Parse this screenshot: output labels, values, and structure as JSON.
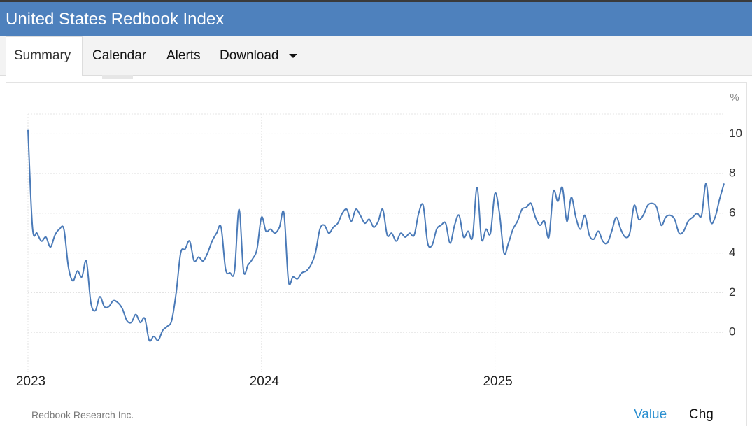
{
  "header": {
    "title": "United States Redbook Index"
  },
  "tabs": [
    "Summary",
    "Calendar",
    "Alerts",
    "Download"
  ],
  "chart_data": {
    "type": "line",
    "y_unit": "%",
    "color": "#4a7ab8",
    "categories": [
      "2023",
      null,
      null,
      null,
      null,
      null,
      null,
      null,
      null,
      null,
      null,
      null,
      null,
      null,
      null,
      null,
      null,
      null,
      null,
      null,
      null,
      null,
      null,
      null,
      null,
      null,
      null,
      null,
      null,
      null,
      null,
      null,
      null,
      null,
      null,
      null,
      null,
      null,
      null,
      null,
      null,
      null,
      null,
      null,
      null,
      null,
      null,
      null,
      null,
      null,
      null,
      null,
      "2024",
      null,
      null,
      null,
      null,
      null,
      null,
      null,
      null,
      null,
      null,
      null,
      null,
      null,
      null,
      null,
      null,
      null,
      null,
      null,
      null,
      null,
      null,
      null,
      null,
      null,
      null,
      null,
      null,
      null,
      null,
      null,
      null,
      null,
      null,
      null,
      null,
      null,
      null,
      null,
      null,
      null,
      null,
      null,
      null,
      null,
      null,
      null,
      null,
      null,
      null,
      null,
      "2025",
      null,
      null,
      null,
      null,
      null,
      null,
      null,
      null,
      null,
      null,
      null,
      null,
      null,
      null,
      null,
      null,
      null,
      null,
      null,
      null,
      null,
      null,
      null,
      null,
      null,
      null,
      null,
      null,
      null,
      null,
      null,
      null,
      null,
      null,
      null,
      null,
      null,
      null,
      null,
      null,
      null,
      null,
      null,
      null,
      null,
      null,
      null,
      null,
      null,
      null,
      null
    ],
    "values": [
      10.2,
      5.3,
      5.0,
      4.6,
      4.8,
      4.3,
      4.9,
      5.2,
      5.2,
      3.3,
      2.6,
      3.1,
      2.8,
      3.6,
      1.5,
      1.1,
      1.8,
      1.3,
      1.3,
      1.6,
      1.5,
      1.2,
      0.6,
      0.5,
      0.9,
      0.5,
      0.7,
      -0.4,
      -0.2,
      -0.4,
      0.1,
      0.3,
      0.6,
      2.0,
      4.0,
      4.2,
      4.6,
      3.6,
      3.8,
      3.6,
      4.0,
      4.6,
      5.0,
      5.3,
      3.2,
      3.0,
      3.1,
      6.2,
      3.1,
      3.4,
      3.7,
      4.2,
      5.8,
      5.1,
      5.2,
      5.0,
      5.3,
      6.0,
      2.6,
      2.8,
      2.7,
      3.0,
      3.1,
      3.4,
      4.0,
      5.2,
      5.4,
      5.0,
      5.3,
      5.5,
      6.0,
      6.2,
      5.6,
      6.2,
      5.9,
      5.5,
      5.7,
      5.3,
      5.6,
      6.2,
      4.9,
      5.0,
      4.6,
      5.0,
      4.8,
      5.0,
      4.9,
      6.0,
      6.4,
      4.5,
      4.4,
      5.2,
      5.4,
      5.5,
      4.5,
      5.4,
      5.9,
      4.8,
      5.1,
      4.8,
      7.3,
      4.7,
      5.2,
      5.0,
      7.0,
      6.0,
      4.0,
      4.5,
      5.2,
      5.6,
      6.2,
      6.3,
      6.5,
      5.8,
      5.4,
      5.6,
      4.8,
      7.1,
      6.6,
      7.3,
      5.6,
      6.8,
      5.8,
      5.2,
      5.9,
      4.9,
      4.7,
      5.1,
      4.6,
      4.5,
      5.1,
      5.8,
      5.2,
      4.8,
      5.0,
      6.4,
      5.7,
      5.9,
      6.4,
      6.5,
      6.3,
      5.4,
      5.8,
      5.9,
      5.7,
      5.0,
      5.1,
      5.6,
      5.8,
      6.0,
      5.9,
      7.5,
      5.6,
      5.8,
      6.7,
      7.5
    ],
    "ylim": [
      -2,
      11
    ],
    "yticks": [
      0,
      2,
      4,
      6,
      8,
      10
    ],
    "grid": true
  },
  "footer": {
    "source": "Redbook Research Inc.",
    "buttons": [
      "Value",
      "Chg"
    ]
  }
}
